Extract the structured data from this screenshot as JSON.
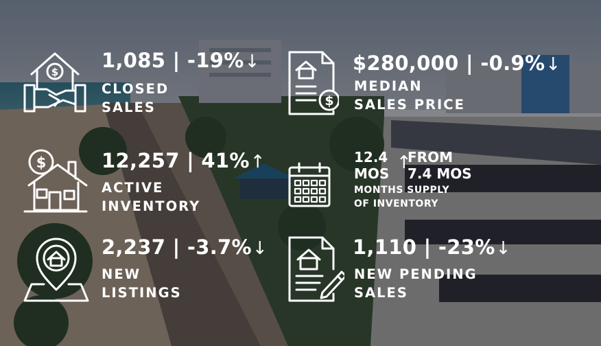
{
  "stats": {
    "closed_sales": {
      "value": "1,085 | -19%",
      "arrow": "↓",
      "label_1": "CLOSED",
      "label_2": "SALES",
      "icon": "home-handshake-dollar-icon"
    },
    "median_price": {
      "value": "$280,000 | -0.9%",
      "arrow": "↓",
      "label_1": "MEDIAN",
      "label_2": "SALES PRICE",
      "icon": "document-house-dollar-icon"
    },
    "active_inventory": {
      "value": "12,257 | 41%",
      "arrow": "↑",
      "label_1": "ACTIVE",
      "label_2": "INVENTORY",
      "icon": "house-dollar-icon"
    },
    "months_supply": {
      "value_1": "12.4",
      "value_2": "MOS",
      "arrow": "↑",
      "from_1": "FROM",
      "from_2": "7.4 MOS",
      "label_1": "MONTHS SUPPLY",
      "label_2": "OF INVENTORY",
      "icon": "calendar-icon"
    },
    "new_listings": {
      "value": "2,237 | -3.7%",
      "arrow": "↓",
      "label_1": "NEW",
      "label_2": "LISTINGS",
      "icon": "house-location-pin-icon"
    },
    "new_pending": {
      "value": "1,110 | -23%",
      "arrow": "↓",
      "label_1": "NEW PENDING",
      "label_2": "SALES",
      "icon": "document-house-pen-icon"
    }
  },
  "colors": {
    "text": "#ffffff",
    "overlay": "#14161e"
  }
}
